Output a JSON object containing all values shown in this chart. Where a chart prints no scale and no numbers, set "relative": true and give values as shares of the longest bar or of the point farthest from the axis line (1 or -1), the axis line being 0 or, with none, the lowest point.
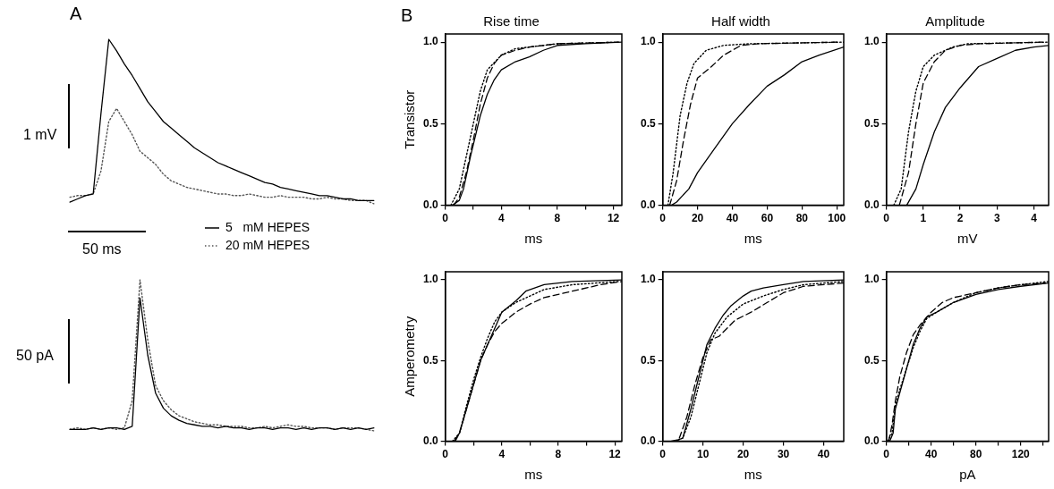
{
  "chart_data": [
    {
      "type": "line",
      "title": "A",
      "relative": true,
      "legend": "bottom right",
      "annotations": [
        "1 mV",
        "50 ms"
      ],
      "categories": [
        null,
        null,
        null,
        null,
        null,
        null,
        null,
        null,
        null,
        null,
        null,
        null,
        null,
        null,
        null,
        null,
        null,
        null,
        null,
        null,
        null,
        null,
        null,
        null,
        null,
        null,
        null,
        null,
        null,
        null,
        null,
        null,
        null,
        null,
        null,
        null,
        null,
        null,
        null,
        null
      ],
      "series": [
        {
          "name": "5   mM HEPES",
          "color": "#000000",
          "line_style": "solid",
          "values": [
            0.01,
            0.03,
            0.05,
            0.06,
            0.55,
            1.0,
            0.93,
            0.85,
            0.78,
            0.7,
            0.62,
            0.56,
            0.5,
            0.46,
            0.42,
            0.38,
            0.34,
            0.31,
            0.28,
            0.25,
            0.23,
            0.21,
            0.19,
            0.17,
            0.15,
            0.13,
            0.12,
            0.1,
            0.09,
            0.08,
            0.07,
            0.06,
            0.05,
            0.05,
            0.04,
            0.03,
            0.03,
            0.02,
            0.02,
            0.02
          ]
        },
        {
          "name": "20 mM HEPES",
          "color": "#555555",
          "line_style": "dotted",
          "values": [
            0.04,
            0.05,
            0.05,
            0.06,
            0.2,
            0.5,
            0.58,
            0.5,
            0.42,
            0.32,
            0.28,
            0.24,
            0.18,
            0.14,
            0.12,
            0.1,
            0.09,
            0.08,
            0.07,
            0.06,
            0.06,
            0.05,
            0.05,
            0.06,
            0.05,
            0.04,
            0.04,
            0.05,
            0.04,
            0.04,
            0.04,
            0.03,
            0.03,
            0.04,
            0.03,
            0.03,
            0.02,
            0.02,
            0.02,
            0.0
          ]
        }
      ]
    },
    {
      "type": "line",
      "relative": true,
      "annotations": [
        "50 pA"
      ],
      "categories": [
        null,
        null,
        null,
        null,
        null,
        null,
        null,
        null,
        null,
        null,
        null,
        null,
        null,
        null,
        null,
        null,
        null,
        null,
        null,
        null,
        null,
        null,
        null,
        null,
        null,
        null,
        null,
        null,
        null,
        null,
        null,
        null,
        null,
        null,
        null,
        null,
        null,
        null,
        null,
        null
      ],
      "series": [
        {
          "color": "#000000",
          "line_style": "solid",
          "values": [
            0.01,
            0.01,
            0.01,
            0.02,
            0.01,
            0.02,
            0.02,
            0.01,
            0.03,
            0.88,
            0.5,
            0.25,
            0.15,
            0.1,
            0.07,
            0.05,
            0.04,
            0.03,
            0.03,
            0.02,
            0.03,
            0.02,
            0.02,
            0.01,
            0.02,
            0.02,
            0.01,
            0.02,
            0.02,
            0.01,
            0.02,
            0.01,
            0.02,
            0.02,
            0.01,
            0.02,
            0.01,
            0.02,
            0.01,
            0.02
          ]
        },
        {
          "color": "#555555",
          "line_style": "dotted",
          "values": [
            0.01,
            0.02,
            0.01,
            0.02,
            0.01,
            0.02,
            0.01,
            0.02,
            0.2,
            1.0,
            0.6,
            0.3,
            0.2,
            0.14,
            0.1,
            0.08,
            0.06,
            0.05,
            0.04,
            0.04,
            0.03,
            0.03,
            0.03,
            0.02,
            0.02,
            0.03,
            0.02,
            0.03,
            0.04,
            0.03,
            0.03,
            0.02,
            0.02,
            0.02,
            0.01,
            0.02,
            0.02,
            0.02,
            0.01,
            0.0
          ]
        }
      ]
    },
    {
      "type": "line",
      "title": "Rise time",
      "xlabel": "ms",
      "ylabel": "Transistor",
      "annotations": [
        "B"
      ],
      "xlim": [
        0,
        12.6
      ],
      "xticks": [
        0,
        {
          "value": 2,
          "label": null
        },
        4,
        {
          "value": 6,
          "label": null
        },
        8,
        {
          "value": 10,
          "label": null
        },
        12
      ],
      "ylim": [
        0,
        1.05
      ],
      "yticks": [
        {
          "value": 0,
          "label": "0.0"
        },
        {
          "value": 0.5,
          "label": "0.5"
        },
        {
          "value": 1,
          "label": "1.0"
        }
      ],
      "series": [
        {
          "color": "#000000",
          "line_style": "solid",
          "x": [
            0.5,
            1,
            1.3,
            1.8,
            2.5,
            3,
            3.5,
            4,
            5,
            6,
            7,
            8,
            10,
            12.6
          ],
          "values": [
            0,
            0.03,
            0.1,
            0.3,
            0.55,
            0.68,
            0.77,
            0.83,
            0.88,
            0.91,
            0.95,
            0.98,
            0.99,
            1.0
          ]
        },
        {
          "color": "#000000",
          "line_style": "dashed",
          "x": [
            0.6,
            1,
            1.5,
            2,
            2.5,
            3,
            3.5,
            4,
            5,
            6,
            8,
            12.3
          ],
          "values": [
            0,
            0.05,
            0.2,
            0.4,
            0.62,
            0.78,
            0.87,
            0.92,
            0.95,
            0.97,
            0.99,
            1.0
          ]
        },
        {
          "color": "#000000",
          "line_style": "dotted",
          "x": [
            0.4,
            1,
            1.5,
            2,
            2.5,
            3,
            4,
            5,
            6,
            8,
            12.5
          ],
          "values": [
            0,
            0.1,
            0.3,
            0.5,
            0.7,
            0.83,
            0.92,
            0.96,
            0.97,
            0.99,
            1.0
          ]
        }
      ]
    },
    {
      "type": "line",
      "title": "Half width",
      "xlabel": "ms",
      "xlim": [
        0,
        104
      ],
      "xticks": [
        0,
        20,
        40,
        60,
        80,
        100
      ],
      "ylim": [
        0,
        1.05
      ],
      "yticks": [
        {
          "value": 0,
          "label": "0.0"
        },
        {
          "value": 0.5,
          "label": "0.5"
        },
        {
          "value": 1,
          "label": "1.0"
        }
      ],
      "series": [
        {
          "color": "#000000",
          "line_style": "solid",
          "x": [
            5,
            8,
            15,
            20,
            30,
            40,
            50,
            60,
            70,
            80,
            90,
            104
          ],
          "values": [
            0,
            0.02,
            0.1,
            0.2,
            0.35,
            0.5,
            0.62,
            0.73,
            0.8,
            0.88,
            0.92,
            0.97
          ]
        },
        {
          "color": "#000000",
          "line_style": "dashed",
          "x": [
            4,
            8,
            12,
            16,
            20,
            28,
            35,
            45,
            55,
            100
          ],
          "values": [
            0,
            0.15,
            0.4,
            0.62,
            0.78,
            0.85,
            0.92,
            0.98,
            0.99,
            1.0
          ]
        },
        {
          "color": "#000000",
          "line_style": "dotted",
          "x": [
            3,
            6,
            10,
            14,
            18,
            25,
            35,
            50,
            104
          ],
          "values": [
            0,
            0.2,
            0.55,
            0.75,
            0.87,
            0.95,
            0.98,
            0.99,
            1.0
          ]
        }
      ]
    },
    {
      "type": "line",
      "title": "Amplitude",
      "xlabel": "mV",
      "xlim": [
        0,
        4.4
      ],
      "xticks": [
        0,
        1,
        2,
        3,
        4
      ],
      "ylim": [
        0,
        1.05
      ],
      "yticks": [
        {
          "value": 0,
          "label": "0.0"
        },
        {
          "value": 0.5,
          "label": "0.5"
        },
        {
          "value": 1,
          "label": "1.0"
        }
      ],
      "series": [
        {
          "color": "#000000",
          "line_style": "solid",
          "x": [
            0.55,
            0.8,
            1,
            1.3,
            1.6,
            2,
            2.5,
            3,
            3.5,
            4,
            4.4
          ],
          "values": [
            0,
            0.1,
            0.25,
            0.45,
            0.6,
            0.72,
            0.85,
            0.9,
            0.95,
            0.97,
            0.98
          ]
        },
        {
          "color": "#000000",
          "line_style": "dashed",
          "x": [
            0.35,
            0.6,
            0.8,
            1,
            1.3,
            1.6,
            2,
            2.5,
            4.3
          ],
          "values": [
            0,
            0.2,
            0.5,
            0.75,
            0.88,
            0.95,
            0.98,
            0.99,
            1.0
          ]
        },
        {
          "color": "#000000",
          "line_style": "dotted",
          "x": [
            0.2,
            0.4,
            0.6,
            0.8,
            1,
            1.3,
            1.8,
            2.2,
            4.4
          ],
          "values": [
            0,
            0.1,
            0.45,
            0.7,
            0.85,
            0.92,
            0.97,
            0.99,
            1.0
          ]
        }
      ]
    },
    {
      "type": "line",
      "xlabel": "ms",
      "ylabel": "Amperometry",
      "xlim": [
        0,
        12.5
      ],
      "xticks": [
        0,
        {
          "value": 2,
          "label": null
        },
        4,
        {
          "value": 6,
          "label": null
        },
        8,
        {
          "value": 10,
          "label": null
        },
        12
      ],
      "ylim": [
        0,
        1.05
      ],
      "yticks": [
        {
          "value": 0,
          "label": "0.0"
        },
        {
          "value": 0.5,
          "label": "0.5"
        },
        {
          "value": 1,
          "label": "1.0"
        }
      ],
      "series": [
        {
          "color": "#000000",
          "line_style": "solid",
          "x": [
            0.6,
            1,
            1.5,
            2,
            2.5,
            3,
            3.5,
            4,
            5,
            5.7,
            7,
            9,
            12.5
          ],
          "values": [
            0,
            0.05,
            0.2,
            0.35,
            0.5,
            0.6,
            0.7,
            0.8,
            0.87,
            0.93,
            0.97,
            0.99,
            1.0
          ]
        },
        {
          "color": "#000000",
          "line_style": "dashed",
          "x": [
            0.7,
            1,
            1.5,
            2,
            2.5,
            3,
            3.5,
            4,
            5,
            6,
            7,
            9,
            11,
            12.5
          ],
          "values": [
            0,
            0.05,
            0.2,
            0.35,
            0.5,
            0.6,
            0.68,
            0.73,
            0.8,
            0.85,
            0.89,
            0.93,
            0.97,
            0.99
          ]
        },
        {
          "color": "#000000",
          "line_style": "dotted",
          "x": [
            0.5,
            1,
            1.5,
            2,
            2.5,
            3,
            3.5,
            4,
            5,
            6,
            7,
            9,
            12.3
          ],
          "values": [
            0,
            0.05,
            0.22,
            0.38,
            0.52,
            0.64,
            0.74,
            0.8,
            0.86,
            0.9,
            0.94,
            0.97,
            0.99
          ]
        }
      ]
    },
    {
      "type": "line",
      "xlabel": "ms",
      "xlim": [
        0,
        45
      ],
      "xticks": [
        0,
        10,
        20,
        30,
        40
      ],
      "ylim": [
        0,
        1.05
      ],
      "yticks": [
        {
          "value": 0,
          "label": "0.0"
        },
        {
          "value": 0.5,
          "label": "0.5"
        },
        {
          "value": 1,
          "label": "1.0"
        }
      ],
      "series": [
        {
          "color": "#000000",
          "line_style": "solid",
          "x": [
            3,
            5,
            7,
            9,
            11,
            13,
            15,
            17,
            20,
            22,
            25,
            30,
            35,
            45
          ],
          "values": [
            0,
            0.02,
            0.2,
            0.4,
            0.6,
            0.7,
            0.78,
            0.84,
            0.9,
            0.93,
            0.95,
            0.97,
            0.99,
            1.0
          ]
        },
        {
          "color": "#000000",
          "line_style": "dashed",
          "x": [
            2,
            4,
            6,
            8,
            10,
            12,
            14,
            16,
            18,
            22,
            26,
            30,
            35,
            45
          ],
          "values": [
            0,
            0.01,
            0.15,
            0.35,
            0.52,
            0.63,
            0.65,
            0.7,
            0.75,
            0.8,
            0.86,
            0.92,
            0.96,
            0.98
          ]
        },
        {
          "color": "#000000",
          "line_style": "dotted",
          "x": [
            3,
            5,
            7,
            9,
            11,
            13,
            16,
            20,
            25,
            30,
            35,
            45
          ],
          "values": [
            0,
            0.02,
            0.15,
            0.35,
            0.55,
            0.67,
            0.77,
            0.85,
            0.9,
            0.94,
            0.97,
            0.99
          ]
        }
      ]
    },
    {
      "type": "line",
      "xlabel": "pA",
      "xlim": [
        0,
        145
      ],
      "xticks": [
        0,
        {
          "value": 20,
          "label": null
        },
        40,
        {
          "value": 60,
          "label": null
        },
        80,
        {
          "value": 100,
          "label": null
        },
        120,
        {
          "value": 140,
          "label": null
        }
      ],
      "ylim": [
        0,
        1.05
      ],
      "yticks": [
        {
          "value": 0,
          "label": "0.0"
        },
        {
          "value": 0.5,
          "label": "0.5"
        },
        {
          "value": 1,
          "label": "1.0"
        }
      ],
      "series": [
        {
          "color": "#000000",
          "line_style": "solid",
          "x": [
            3,
            6,
            8,
            12,
            18,
            24,
            30,
            36,
            45,
            60,
            80,
            100,
            120,
            145
          ],
          "values": [
            0,
            0.05,
            0.2,
            0.3,
            0.45,
            0.6,
            0.7,
            0.77,
            0.8,
            0.86,
            0.91,
            0.94,
            0.96,
            0.98
          ]
        },
        {
          "color": "#000000",
          "line_style": "dashed",
          "x": [
            2,
            5,
            8,
            12,
            18,
            24,
            30,
            40,
            50,
            60,
            80,
            100,
            120,
            142
          ],
          "values": [
            0,
            0.1,
            0.25,
            0.4,
            0.55,
            0.66,
            0.72,
            0.8,
            0.86,
            0.89,
            0.92,
            0.95,
            0.97,
            0.98
          ]
        },
        {
          "color": "#000000",
          "line_style": "dotted",
          "x": [
            1,
            5,
            8,
            12,
            18,
            24,
            30,
            36,
            45,
            60,
            80,
            100,
            120,
            145
          ],
          "values": [
            0,
            0.05,
            0.22,
            0.32,
            0.45,
            0.58,
            0.68,
            0.76,
            0.8,
            0.86,
            0.92,
            0.95,
            0.97,
            0.99
          ]
        }
      ]
    }
  ]
}
